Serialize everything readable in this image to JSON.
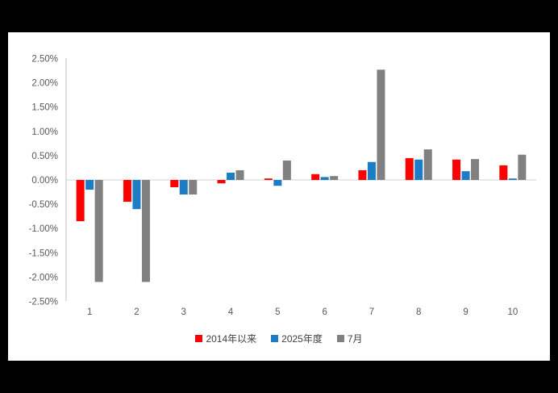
{
  "page": {
    "background_color": "#000000",
    "panel_background_color": "#ffffff",
    "axis_line_color": "#bfbfbf",
    "zero_line_color": "#d0d0d0",
    "tick_label_color": "#595959"
  },
  "chart_data": {
    "type": "bar",
    "title": "",
    "categories": [
      "1",
      "2",
      "3",
      "4",
      "5",
      "6",
      "7",
      "8",
      "9",
      "10"
    ],
    "series": [
      {
        "name": "2014年以来",
        "color": "#ff0000",
        "values": [
          -0.85,
          -0.45,
          -0.15,
          -0.07,
          0.03,
          0.12,
          0.2,
          0.45,
          0.42,
          0.3
        ]
      },
      {
        "name": "2025年度",
        "color": "#1c7cc4",
        "values": [
          -0.2,
          -0.6,
          -0.3,
          0.15,
          -0.12,
          0.06,
          0.37,
          0.42,
          0.18,
          0.03
        ]
      },
      {
        "name": "7月",
        "color": "#808080",
        "values": [
          -2.1,
          -2.1,
          -0.3,
          0.2,
          0.4,
          0.08,
          2.27,
          0.63,
          0.43,
          0.52
        ]
      }
    ],
    "ylim": [
      -2.5,
      2.5
    ],
    "y_tick_values": [
      2.5,
      2.0,
      1.5,
      1.0,
      0.5,
      0.0,
      -0.5,
      -1.0,
      -1.5,
      -2.0,
      -2.5
    ],
    "y_tick_labels": [
      "2.50%",
      "2.00%",
      "1.50%",
      "1.00%",
      "0.50%",
      "0.00%",
      "-0.50%",
      "-1.00%",
      "-1.50%",
      "-2.00%",
      "-2.50%"
    ],
    "grid": "zero-line-only",
    "legend_position": "bottom"
  }
}
